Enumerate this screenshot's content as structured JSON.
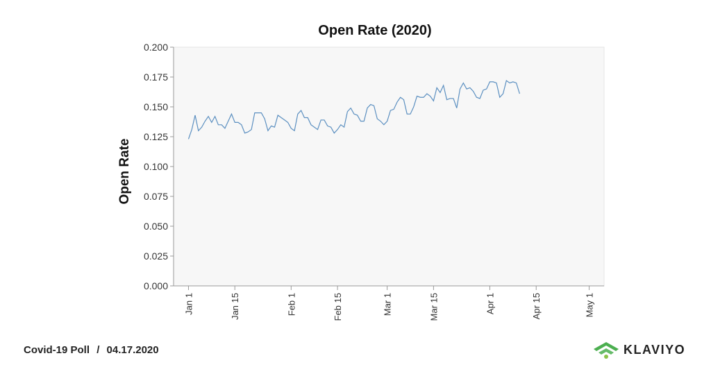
{
  "footer": {
    "source": "Covid-19 Poll",
    "separator": "/",
    "date": "04.17.2020"
  },
  "brand": {
    "name": "KLAVIYO",
    "accent_color": "#4caf50"
  },
  "chart_data": {
    "type": "line",
    "title": "Open Rate (2020)",
    "xlabel": "",
    "ylabel": "Open Rate",
    "ylim": [
      0,
      0.2
    ],
    "yticks": [
      0.0,
      0.025,
      0.05,
      0.075,
      0.1,
      0.125,
      0.15,
      0.175,
      0.2
    ],
    "ytick_labels": [
      "0.000",
      "0.025",
      "0.050",
      "0.075",
      "0.100",
      "0.125",
      "0.150",
      "0.175",
      "0.200"
    ],
    "xlim": [
      "2020-01-01",
      "2020-05-01"
    ],
    "xticks": [
      "2020-01-01",
      "2020-01-15",
      "2020-02-01",
      "2020-02-15",
      "2020-03-01",
      "2020-03-15",
      "2020-04-01",
      "2020-04-15",
      "2020-05-01"
    ],
    "xtick_labels": [
      "Jan 1",
      "Jan 15",
      "Feb 1",
      "Feb 15",
      "Mar 1",
      "Mar 15",
      "Apr 1",
      "Apr 15",
      "May 1"
    ],
    "grid": false,
    "line_color": "#5b8fc0",
    "plot_background": "#f7f7f7",
    "series": [
      {
        "x": [
          "2020-01-01",
          "2020-01-02",
          "2020-01-03",
          "2020-01-04",
          "2020-01-05",
          "2020-01-06",
          "2020-01-07",
          "2020-01-08",
          "2020-01-09",
          "2020-01-10",
          "2020-01-11",
          "2020-01-12",
          "2020-01-13",
          "2020-01-14",
          "2020-01-15",
          "2020-01-16",
          "2020-01-17",
          "2020-01-18",
          "2020-01-19",
          "2020-01-20",
          "2020-01-21",
          "2020-01-22",
          "2020-01-23",
          "2020-01-24",
          "2020-01-25",
          "2020-01-26",
          "2020-01-27",
          "2020-01-28",
          "2020-01-29",
          "2020-01-30",
          "2020-01-31",
          "2020-02-01",
          "2020-02-02",
          "2020-02-03",
          "2020-02-04",
          "2020-02-05",
          "2020-02-06",
          "2020-02-07",
          "2020-02-08",
          "2020-02-09",
          "2020-02-10",
          "2020-02-11",
          "2020-02-12",
          "2020-02-13",
          "2020-02-14",
          "2020-02-15",
          "2020-02-16",
          "2020-02-17",
          "2020-02-18",
          "2020-02-19",
          "2020-02-20",
          "2020-02-21",
          "2020-02-22",
          "2020-02-23",
          "2020-02-24",
          "2020-02-25",
          "2020-02-26",
          "2020-02-27",
          "2020-02-28",
          "2020-02-29",
          "2020-03-01",
          "2020-03-02",
          "2020-03-03",
          "2020-03-04",
          "2020-03-05",
          "2020-03-06",
          "2020-03-07",
          "2020-03-08",
          "2020-03-09",
          "2020-03-10",
          "2020-03-11",
          "2020-03-12",
          "2020-03-13",
          "2020-03-14",
          "2020-03-15",
          "2020-03-16",
          "2020-03-17",
          "2020-03-18",
          "2020-03-19",
          "2020-03-20",
          "2020-03-21",
          "2020-03-22",
          "2020-03-23",
          "2020-03-24",
          "2020-03-25",
          "2020-03-26",
          "2020-03-27",
          "2020-03-28",
          "2020-03-29",
          "2020-03-30",
          "2020-03-31",
          "2020-04-01",
          "2020-04-02",
          "2020-04-03",
          "2020-04-04",
          "2020-04-05",
          "2020-04-06",
          "2020-04-07",
          "2020-04-08",
          "2020-04-09",
          "2020-04-10"
        ],
        "y": [
          0.123,
          0.131,
          0.143,
          0.13,
          0.133,
          0.138,
          0.142,
          0.137,
          0.142,
          0.135,
          0.135,
          0.132,
          0.138,
          0.144,
          0.137,
          0.137,
          0.135,
          0.128,
          0.129,
          0.131,
          0.145,
          0.145,
          0.145,
          0.14,
          0.13,
          0.134,
          0.133,
          0.143,
          0.141,
          0.139,
          0.137,
          0.132,
          0.13,
          0.144,
          0.147,
          0.141,
          0.141,
          0.135,
          0.133,
          0.131,
          0.139,
          0.139,
          0.134,
          0.133,
          0.128,
          0.131,
          0.135,
          0.133,
          0.146,
          0.149,
          0.144,
          0.143,
          0.138,
          0.138,
          0.149,
          0.152,
          0.151,
          0.14,
          0.138,
          0.135,
          0.138,
          0.147,
          0.148,
          0.154,
          0.158,
          0.156,
          0.144,
          0.144,
          0.15,
          0.159,
          0.158,
          0.158,
          0.161,
          0.159,
          0.155,
          0.166,
          0.162,
          0.168,
          0.156,
          0.157,
          0.157,
          0.149,
          0.165,
          0.17,
          0.165,
          0.166,
          0.163,
          0.158,
          0.157,
          0.164,
          0.165,
          0.171,
          0.171,
          0.17,
          0.158,
          0.161,
          0.172,
          0.17,
          0.171,
          0.17,
          0.161
        ]
      }
    ]
  }
}
